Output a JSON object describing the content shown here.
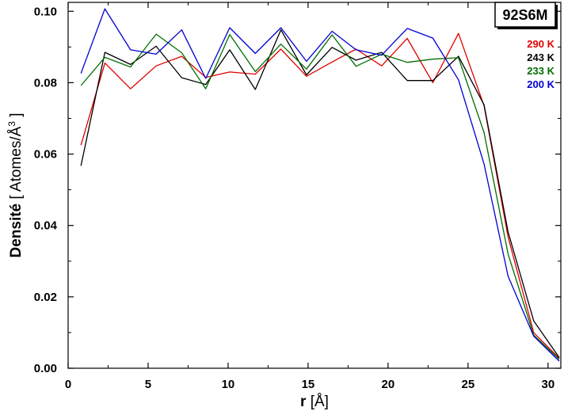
{
  "chart_data": {
    "type": "line",
    "title": "92S6M",
    "xlabel": "r [Å]",
    "xlabel_bold": "r",
    "xlabel_rest": " [Å]",
    "ylabel": "Densité [ Atomes/Å",
    "ylabel_bold": "Densité",
    "ylabel_rest": " [ Atomes/Å",
    "ylabel_sup": "3",
    "ylabel_close": " ]",
    "xlim": [
      0,
      30.8
    ],
    "ylim": [
      0,
      0.1025
    ],
    "xticks": [
      0,
      5,
      10,
      15,
      20,
      25,
      30
    ],
    "xtick_labels": [
      "0",
      "5",
      "10",
      "15",
      "20",
      "25",
      "30"
    ],
    "yticks": [
      0.0,
      0.02,
      0.04,
      0.06,
      0.08,
      0.1
    ],
    "ytick_labels": [
      "0.00",
      "0.02",
      "0.04",
      "0.06",
      "0.08",
      "0.10"
    ],
    "grid": false,
    "legend_position": "top-right",
    "x": [
      0.8,
      2.3,
      3.9,
      5.5,
      7.1,
      8.6,
      10.1,
      11.7,
      13.3,
      14.9,
      16.5,
      18.0,
      19.6,
      21.2,
      22.8,
      24.4,
      26.0,
      27.5,
      29.1,
      30.7
    ],
    "series": [
      {
        "name": "290 K",
        "color": "#e00000",
        "values": [
          0.0625,
          0.0855,
          0.0783,
          0.0847,
          0.0874,
          0.0815,
          0.083,
          0.0824,
          0.0894,
          0.0818,
          0.0858,
          0.0894,
          0.0847,
          0.0924,
          0.08,
          0.0938,
          0.0735,
          0.0368,
          0.01,
          0.0028
        ]
      },
      {
        "name": "243 K",
        "color": "#000000",
        "values": [
          0.0567,
          0.0885,
          0.0851,
          0.0902,
          0.0814,
          0.0795,
          0.0892,
          0.0781,
          0.0948,
          0.0822,
          0.0899,
          0.0863,
          0.0885,
          0.0806,
          0.0806,
          0.0874,
          0.0738,
          0.0382,
          0.0133,
          0.003
        ]
      },
      {
        "name": "233 K",
        "color": "#006e00",
        "values": [
          0.0792,
          0.0871,
          0.0844,
          0.0936,
          0.0884,
          0.0783,
          0.0935,
          0.0831,
          0.0908,
          0.0838,
          0.0934,
          0.0846,
          0.088,
          0.0857,
          0.0866,
          0.087,
          0.066,
          0.032,
          0.0093,
          0.0025
        ]
      },
      {
        "name": "200 K",
        "color": "#0000d0",
        "values": [
          0.0826,
          0.1007,
          0.0892,
          0.088,
          0.0948,
          0.0812,
          0.0954,
          0.0882,
          0.0954,
          0.086,
          0.0944,
          0.0892,
          0.0877,
          0.0952,
          0.0925,
          0.0808,
          0.0572,
          0.0258,
          0.009,
          0.002
        ]
      }
    ]
  }
}
